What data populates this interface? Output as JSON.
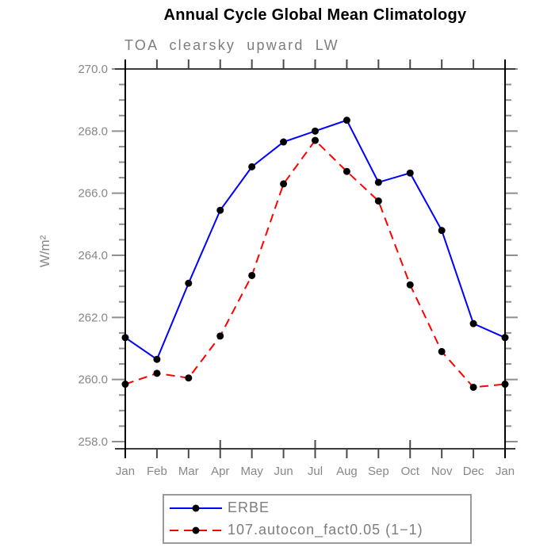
{
  "colors": {
    "title": "#000000",
    "labels": "#878787",
    "frame": "#3c3c3c",
    "axis_tick": "#8f8f8f",
    "month_tick": "#4a4a4a",
    "marker": "#000000",
    "legend_border": "#9a9a9a"
  },
  "chart_data": {
    "type": "line",
    "title": "Annual Cycle Global Mean Climatology",
    "subtitle": "TOA clearsky upward LW",
    "ylabel": "W/m²",
    "xlabel": "",
    "ylim": [
      258.0,
      270.0
    ],
    "ytick_step": 2.0,
    "ytick_minor_step": 0.5,
    "ytick_labels": [
      "270.0",
      "268.0",
      "266.0",
      "264.0",
      "262.0",
      "260.0",
      "258.0"
    ],
    "categories": [
      "Jan",
      "Feb",
      "Mar",
      "Apr",
      "May",
      "Jun",
      "Jul",
      "Aug",
      "Sep",
      "Oct",
      "Nov",
      "Dec",
      "Jan"
    ],
    "series": [
      {
        "name": "ERBE",
        "color": "#0000ff",
        "style": "solid",
        "marker": "black-dot",
        "values": [
          261.35,
          260.65,
          263.1,
          265.45,
          266.85,
          267.65,
          268.0,
          268.35,
          266.35,
          266.65,
          264.8,
          261.8,
          261.35
        ]
      },
      {
        "name": "107.autocon_fact0.05 (1−1)",
        "color": "#ff0000",
        "style": "dashed",
        "marker": "black-dot",
        "values": [
          259.85,
          260.2,
          260.05,
          261.4,
          263.35,
          266.3,
          267.7,
          266.7,
          265.75,
          263.05,
          260.9,
          259.75,
          259.85
        ]
      }
    ],
    "grid": false,
    "legend_position": "bottom"
  }
}
